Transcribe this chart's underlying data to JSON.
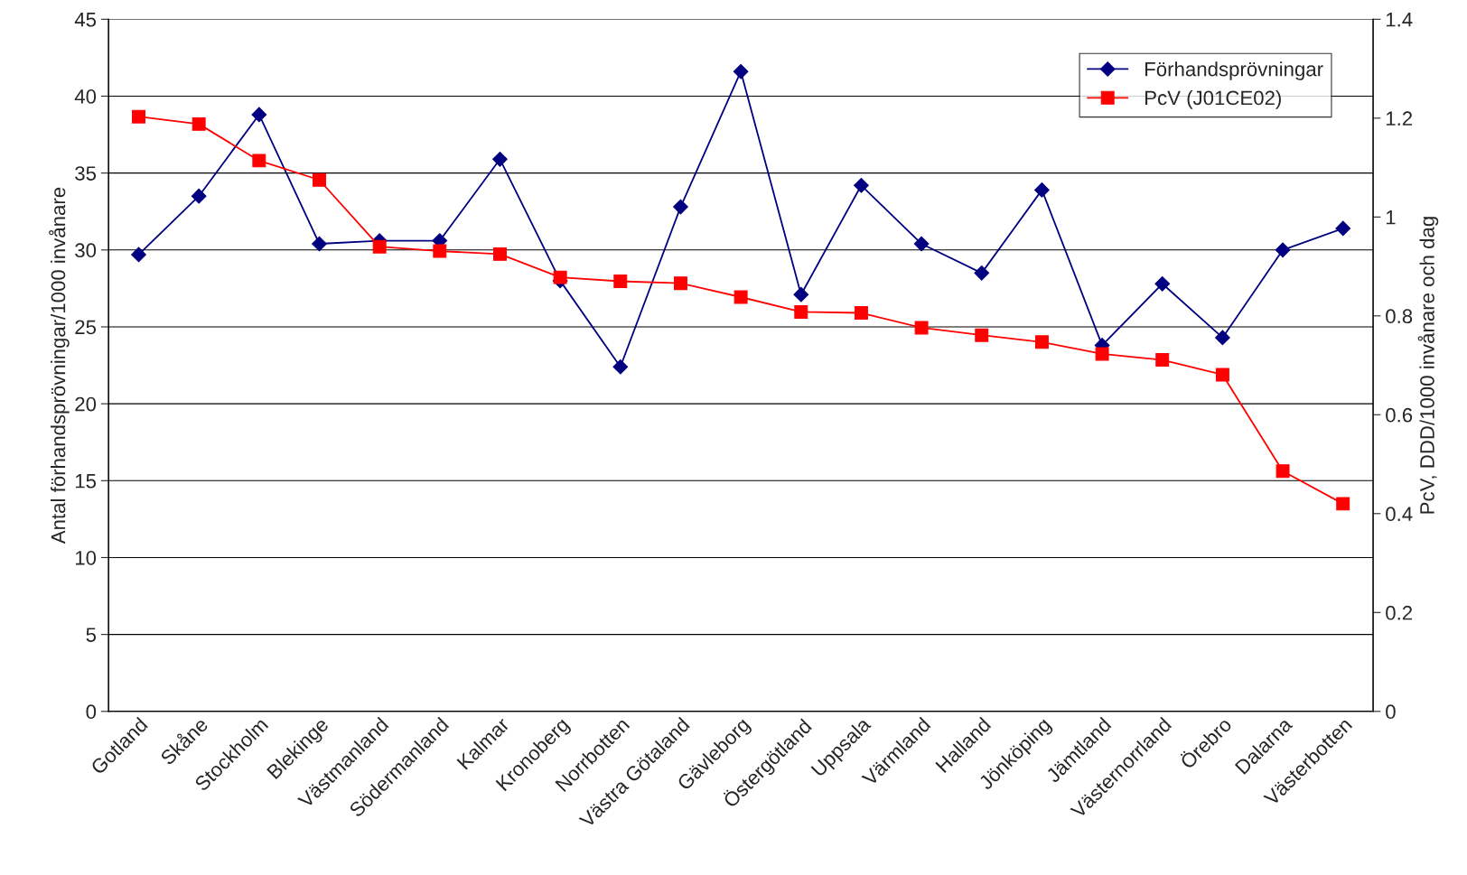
{
  "chart_data": {
    "type": "line",
    "categories": [
      "Gotland",
      "Skåne",
      "Stockholm",
      "Blekinge",
      "Västmanland",
      "Södermanland",
      "Kalmar",
      "Kronoberg",
      "Norrbotten",
      "Västra Götaland",
      "Gävleborg",
      "Östergötland",
      "Uppsala",
      "Värmland",
      "Halland",
      "Jönköping",
      "Jämtland",
      "Västernorrland",
      "Örebro",
      "Dalarna",
      "Västerbotten"
    ],
    "series": [
      {
        "name": "Förhandsprövningar",
        "color": "#000080",
        "marker": "diamond",
        "values": [
          29.7,
          33.5,
          38.8,
          30.4,
          30.6,
          30.6,
          35.9,
          28.0,
          22.4,
          32.8,
          41.6,
          27.1,
          34.2,
          30.4,
          28.5,
          33.9,
          23.8,
          27.8,
          24.3,
          30.0,
          31.4
        ]
      },
      {
        "name": "PcV (J01CE02)",
        "color": "#ff0000",
        "marker": "square",
        "axis": "y2",
        "values": [
          1.203,
          1.188,
          1.114,
          1.075,
          0.94,
          0.931,
          0.925,
          0.878,
          0.87,
          0.866,
          0.838,
          0.808,
          0.806,
          0.776,
          0.761,
          0.747,
          0.723,
          0.711,
          0.681,
          0.486,
          0.42
        ]
      }
    ],
    "ylabel": "Antal förhandsprövningar/1000 invånare",
    "y2label": "PcV, DDD/1000 invånare och dag",
    "ylim": [
      0,
      45
    ],
    "yticks": [
      0,
      5,
      10,
      15,
      20,
      25,
      30,
      35,
      40,
      45
    ],
    "y2lim": [
      0,
      1.4
    ],
    "y2ticks": [
      0,
      0.2,
      0.4,
      0.6,
      0.8,
      1,
      1.2,
      1.4
    ],
    "grid": "y",
    "legend": "top right",
    "line_style": "solid"
  }
}
